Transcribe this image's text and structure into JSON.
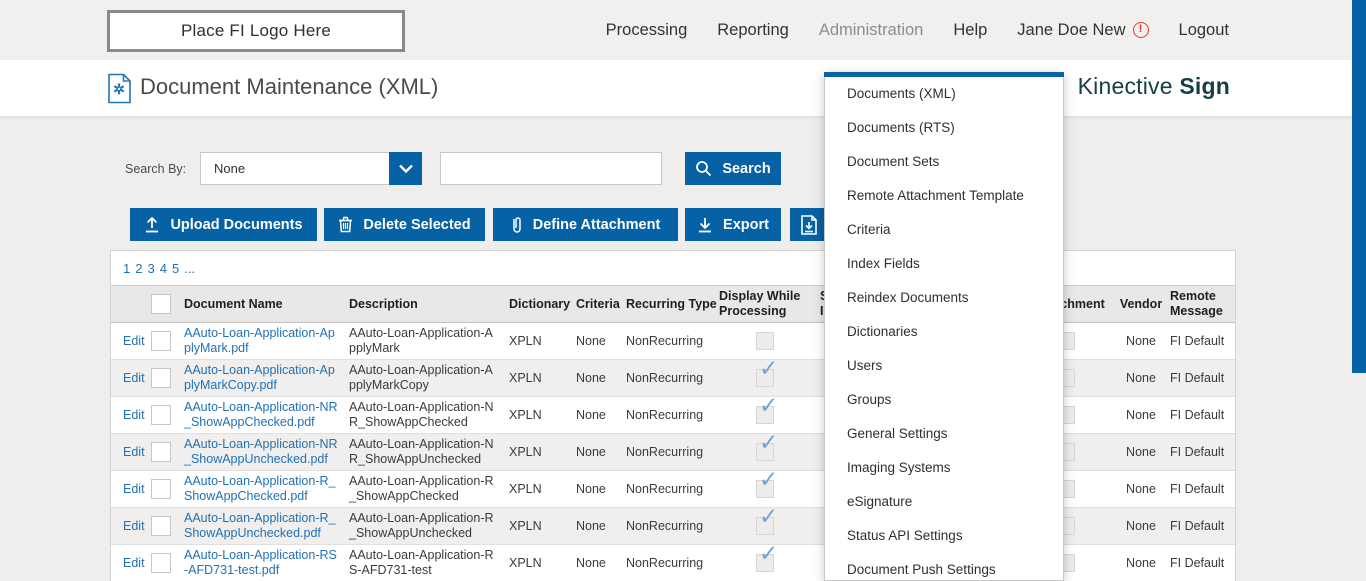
{
  "topbar": {
    "logo_placeholder": "Place FI Logo Here",
    "nav": [
      {
        "label": "Processing"
      },
      {
        "label": "Reporting"
      },
      {
        "label": "Administration",
        "open": true
      },
      {
        "label": "Help"
      },
      {
        "label": "Jane Doe New",
        "alert": true
      },
      {
        "label": "Logout"
      }
    ]
  },
  "page": {
    "title": "Document Maintenance (XML)",
    "brand_name": "Kinective",
    "brand_product": "Sign"
  },
  "admin_menu": {
    "items": [
      "Documents (XML)",
      "Documents (RTS)",
      "Document Sets",
      "Remote Attachment Template",
      "Criteria",
      "Index Fields",
      "Reindex Documents",
      "Dictionaries",
      "Users",
      "Groups",
      "General Settings",
      "Imaging Systems",
      "eSignature",
      "Status API Settings",
      "Document Push Settings"
    ]
  },
  "search": {
    "label": "Search By:",
    "selected_option": "None",
    "query_value": "",
    "button_label": "Search"
  },
  "toolbar": {
    "upload_label": "Upload Documents",
    "delete_label": "Delete Selected",
    "attachment_label": "Define Attachment",
    "export_label": "Export"
  },
  "pagination": {
    "pages": [
      "1",
      "2",
      "3",
      "4",
      "5"
    ],
    "ellipsis": "..."
  },
  "table": {
    "edit_label": "Edit",
    "headers": {
      "document_name": "Document Name",
      "description": "Description",
      "dictionary": "Dictionary",
      "criteria": "Criteria",
      "recurring_type": "Recurring Type",
      "display_while_processing_line1": "Display While",
      "display_while_processing_line2": "Processing",
      "hidden_line1": "S",
      "hidden_line2": "I",
      "attachment": "Attachment",
      "vendor": "Vendor",
      "remote_message_line1": "Remote",
      "remote_message_line2": "Message"
    },
    "rows": [
      {
        "document_name": "AAuto-Loan-Application-ApplyMark.pdf",
        "description": "AAuto-Loan-Application-ApplyMark",
        "dictionary": "XPLN",
        "criteria": "None",
        "recurring_type": "NonRecurring",
        "display_while_processing": false,
        "vendor": "None",
        "remote_message": "FI Default"
      },
      {
        "document_name": "AAuto-Loan-Application-ApplyMarkCopy.pdf",
        "description": "AAuto-Loan-Application-ApplyMarkCopy",
        "dictionary": "XPLN",
        "criteria": "None",
        "recurring_type": "NonRecurring",
        "display_while_processing": true,
        "vendor": "None",
        "remote_message": "FI Default"
      },
      {
        "document_name": "AAuto-Loan-Application-NR_ShowAppChecked.pdf",
        "description": "AAuto-Loan-Application-NR_ShowAppChecked",
        "dictionary": "XPLN",
        "criteria": "None",
        "recurring_type": "NonRecurring",
        "display_while_processing": true,
        "vendor": "None",
        "remote_message": "FI Default"
      },
      {
        "document_name": "AAuto-Loan-Application-NR_ShowAppUnchecked.pdf",
        "description": "AAuto-Loan-Application-NR_ShowAppUnchecked",
        "dictionary": "XPLN",
        "criteria": "None",
        "recurring_type": "NonRecurring",
        "display_while_processing": true,
        "vendor": "None",
        "remote_message": "FI Default"
      },
      {
        "document_name": "AAuto-Loan-Application-R_ShowAppChecked.pdf",
        "description": "AAuto-Loan-Application-R_ShowAppChecked",
        "dictionary": "XPLN",
        "criteria": "None",
        "recurring_type": "NonRecurring",
        "display_while_processing": true,
        "vendor": "None",
        "remote_message": "FI Default"
      },
      {
        "document_name": "AAuto-Loan-Application-R_ShowAppUnchecked.pdf",
        "description": "AAuto-Loan-Application-R_ShowAppUnchecked",
        "dictionary": "XPLN",
        "criteria": "None",
        "recurring_type": "NonRecurring",
        "display_while_processing": true,
        "vendor": "None",
        "remote_message": "FI Default"
      },
      {
        "document_name": "AAuto-Loan-Application-RS-AFD731-test.pdf",
        "description": "AAuto-Loan-Application-RS-AFD731-test",
        "dictionary": "XPLN",
        "criteria": "None",
        "recurring_type": "NonRecurring",
        "display_while_processing": true,
        "vendor": "None",
        "remote_message": "FI Default"
      }
    ]
  },
  "colors": {
    "brand_blue": "#0661a5",
    "link_blue": "#2271b3",
    "brand_teal": "#153f45",
    "alert_red": "#e23b2e",
    "check_blue": "#72a3d4"
  }
}
